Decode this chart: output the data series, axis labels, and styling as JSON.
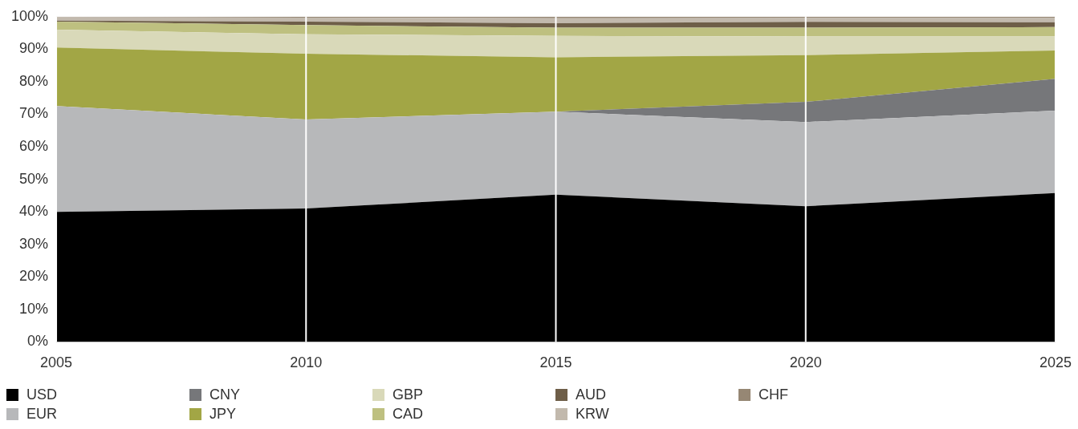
{
  "chart_data": {
    "type": "area",
    "stacked": true,
    "x": [
      2005,
      2010,
      2015,
      2020,
      2025
    ],
    "xlim": [
      2005,
      2025
    ],
    "xticks": [
      2005,
      2010,
      2015,
      2020,
      2025
    ],
    "ylim": [
      0,
      100
    ],
    "yticks": [
      {
        "value": 0,
        "label": "0%"
      },
      {
        "value": 10,
        "label": "10%"
      },
      {
        "value": 20,
        "label": "20%"
      },
      {
        "value": 30,
        "label": "30%"
      },
      {
        "value": 40,
        "label": "40%"
      },
      {
        "value": 50,
        "label": "50%"
      },
      {
        "value": 60,
        "label": "60%"
      },
      {
        "value": 70,
        "label": "70%"
      },
      {
        "value": 80,
        "label": "80%"
      },
      {
        "value": 90,
        "label": "90%"
      },
      {
        "value": 100,
        "label": "100%"
      }
    ],
    "grid": "x",
    "legend": "bottom",
    "series": [
      {
        "name": "USD",
        "color": "#000000",
        "values": [
          40,
          41,
          45.3,
          41.7,
          45.8
        ]
      },
      {
        "name": "EUR",
        "color": "#b7b8ba",
        "values": [
          32.5,
          27.4,
          25.5,
          25.9,
          25.3
        ]
      },
      {
        "name": "CNY",
        "color": "#76777a",
        "values": [
          0,
          0,
          0,
          6.2,
          9.8
        ]
      },
      {
        "name": "JPY",
        "color": "#a2a645",
        "values": [
          18,
          20.2,
          16.7,
          14.4,
          8.7
        ]
      },
      {
        "name": "GBP",
        "color": "#d9d9b9",
        "values": [
          5.5,
          6,
          6.6,
          5.7,
          4.3
        ]
      },
      {
        "name": "CAD",
        "color": "#bec080",
        "values": [
          2.5,
          2.8,
          2.5,
          2.7,
          2.9
        ]
      },
      {
        "name": "AUD",
        "color": "#6e5e48",
        "values": [
          0.3,
          1.1,
          1.4,
          1.8,
          1.5
        ]
      },
      {
        "name": "KRW",
        "color": "#c2b9ad",
        "values": [
          1,
          1.2,
          1.5,
          1.2,
          1.3
        ]
      },
      {
        "name": "CHF",
        "color": "#968774",
        "values": [
          0.2,
          0.3,
          0.5,
          0.4,
          0.4
        ]
      }
    ]
  }
}
